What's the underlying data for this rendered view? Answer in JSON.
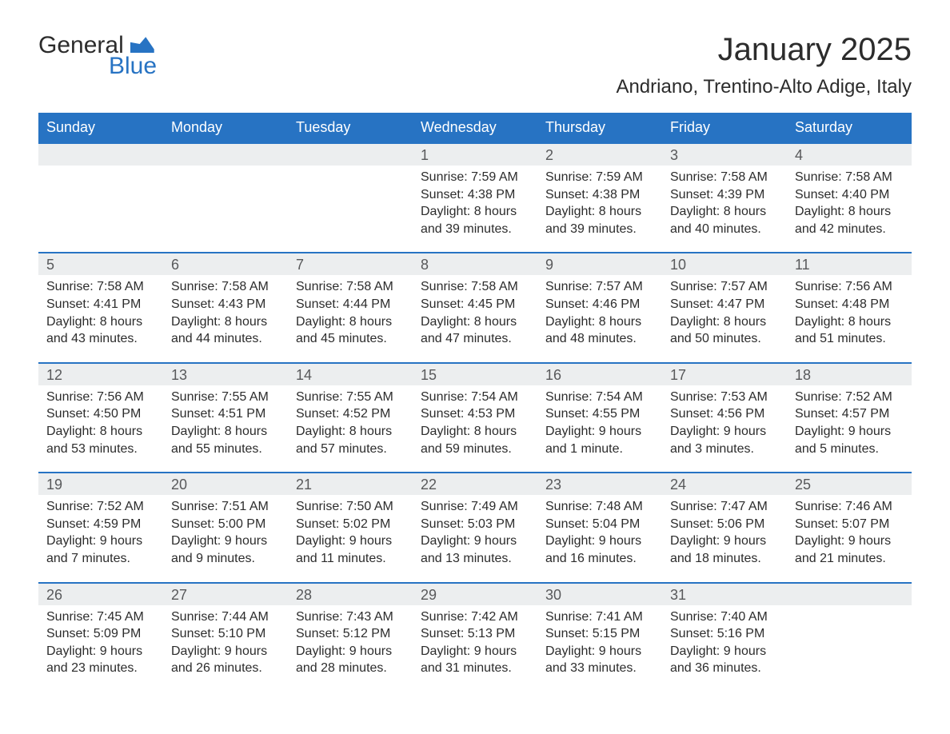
{
  "logo": {
    "text1": "General",
    "text2": "Blue"
  },
  "title": "January 2025",
  "location": "Andriano, Trentino-Alto Adige, Italy",
  "colors": {
    "brand_blue": "#2773c3",
    "header_text": "#ffffff",
    "daynum_bg": "#eceeef",
    "daynum_color": "#58595b",
    "body_text": "#2c2c2c",
    "page_bg": "#ffffff"
  },
  "typography": {
    "title_fontsize": 40,
    "location_fontsize": 24,
    "dayheader_fontsize": 18,
    "daynum_fontsize": 18,
    "body_fontsize": 16,
    "logo_fontsize": 30
  },
  "dayHeaders": [
    "Sunday",
    "Monday",
    "Tuesday",
    "Wednesday",
    "Thursday",
    "Friday",
    "Saturday"
  ],
  "labels": {
    "sunrise": "Sunrise:",
    "sunset": "Sunset:",
    "daylight": "Daylight:"
  },
  "weeks": [
    [
      null,
      null,
      null,
      {
        "n": "1",
        "sunrise": "7:59 AM",
        "sunset": "4:38 PM",
        "daylight": "8 hours and 39 minutes."
      },
      {
        "n": "2",
        "sunrise": "7:59 AM",
        "sunset": "4:38 PM",
        "daylight": "8 hours and 39 minutes."
      },
      {
        "n": "3",
        "sunrise": "7:58 AM",
        "sunset": "4:39 PM",
        "daylight": "8 hours and 40 minutes."
      },
      {
        "n": "4",
        "sunrise": "7:58 AM",
        "sunset": "4:40 PM",
        "daylight": "8 hours and 42 minutes."
      }
    ],
    [
      {
        "n": "5",
        "sunrise": "7:58 AM",
        "sunset": "4:41 PM",
        "daylight": "8 hours and 43 minutes."
      },
      {
        "n": "6",
        "sunrise": "7:58 AM",
        "sunset": "4:43 PM",
        "daylight": "8 hours and 44 minutes."
      },
      {
        "n": "7",
        "sunrise": "7:58 AM",
        "sunset": "4:44 PM",
        "daylight": "8 hours and 45 minutes."
      },
      {
        "n": "8",
        "sunrise": "7:58 AM",
        "sunset": "4:45 PM",
        "daylight": "8 hours and 47 minutes."
      },
      {
        "n": "9",
        "sunrise": "7:57 AM",
        "sunset": "4:46 PM",
        "daylight": "8 hours and 48 minutes."
      },
      {
        "n": "10",
        "sunrise": "7:57 AM",
        "sunset": "4:47 PM",
        "daylight": "8 hours and 50 minutes."
      },
      {
        "n": "11",
        "sunrise": "7:56 AM",
        "sunset": "4:48 PM",
        "daylight": "8 hours and 51 minutes."
      }
    ],
    [
      {
        "n": "12",
        "sunrise": "7:56 AM",
        "sunset": "4:50 PM",
        "daylight": "8 hours and 53 minutes."
      },
      {
        "n": "13",
        "sunrise": "7:55 AM",
        "sunset": "4:51 PM",
        "daylight": "8 hours and 55 minutes."
      },
      {
        "n": "14",
        "sunrise": "7:55 AM",
        "sunset": "4:52 PM",
        "daylight": "8 hours and 57 minutes."
      },
      {
        "n": "15",
        "sunrise": "7:54 AM",
        "sunset": "4:53 PM",
        "daylight": "8 hours and 59 minutes."
      },
      {
        "n": "16",
        "sunrise": "7:54 AM",
        "sunset": "4:55 PM",
        "daylight": "9 hours and 1 minute."
      },
      {
        "n": "17",
        "sunrise": "7:53 AM",
        "sunset": "4:56 PM",
        "daylight": "9 hours and 3 minutes."
      },
      {
        "n": "18",
        "sunrise": "7:52 AM",
        "sunset": "4:57 PM",
        "daylight": "9 hours and 5 minutes."
      }
    ],
    [
      {
        "n": "19",
        "sunrise": "7:52 AM",
        "sunset": "4:59 PM",
        "daylight": "9 hours and 7 minutes."
      },
      {
        "n": "20",
        "sunrise": "7:51 AM",
        "sunset": "5:00 PM",
        "daylight": "9 hours and 9 minutes."
      },
      {
        "n": "21",
        "sunrise": "7:50 AM",
        "sunset": "5:02 PM",
        "daylight": "9 hours and 11 minutes."
      },
      {
        "n": "22",
        "sunrise": "7:49 AM",
        "sunset": "5:03 PM",
        "daylight": "9 hours and 13 minutes."
      },
      {
        "n": "23",
        "sunrise": "7:48 AM",
        "sunset": "5:04 PM",
        "daylight": "9 hours and 16 minutes."
      },
      {
        "n": "24",
        "sunrise": "7:47 AM",
        "sunset": "5:06 PM",
        "daylight": "9 hours and 18 minutes."
      },
      {
        "n": "25",
        "sunrise": "7:46 AM",
        "sunset": "5:07 PM",
        "daylight": "9 hours and 21 minutes."
      }
    ],
    [
      {
        "n": "26",
        "sunrise": "7:45 AM",
        "sunset": "5:09 PM",
        "daylight": "9 hours and 23 minutes."
      },
      {
        "n": "27",
        "sunrise": "7:44 AM",
        "sunset": "5:10 PM",
        "daylight": "9 hours and 26 minutes."
      },
      {
        "n": "28",
        "sunrise": "7:43 AM",
        "sunset": "5:12 PM",
        "daylight": "9 hours and 28 minutes."
      },
      {
        "n": "29",
        "sunrise": "7:42 AM",
        "sunset": "5:13 PM",
        "daylight": "9 hours and 31 minutes."
      },
      {
        "n": "30",
        "sunrise": "7:41 AM",
        "sunset": "5:15 PM",
        "daylight": "9 hours and 33 minutes."
      },
      {
        "n": "31",
        "sunrise": "7:40 AM",
        "sunset": "5:16 PM",
        "daylight": "9 hours and 36 minutes."
      },
      null
    ]
  ]
}
